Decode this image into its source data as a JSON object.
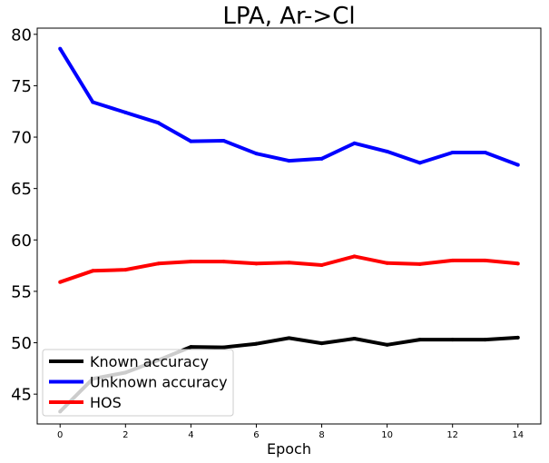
{
  "chart_data": {
    "type": "line",
    "title": "LPA, Ar->Cl",
    "xlabel": "Epoch",
    "ylabel": "",
    "xlim": [
      -0.7,
      14.7
    ],
    "ylim": [
      42.1,
      80.6
    ],
    "xticks": [
      0,
      2,
      4,
      6,
      8,
      10,
      12,
      14
    ],
    "yticks": [
      45,
      50,
      55,
      60,
      65,
      70,
      75,
      80
    ],
    "x": [
      0,
      1,
      2,
      3,
      4,
      5,
      6,
      7,
      8,
      9,
      10,
      11,
      12,
      13,
      14
    ],
    "series": [
      {
        "name": "Known accuracy",
        "color": "#000000",
        "values": [
          43.3,
          46.5,
          47.1,
          48.3,
          49.6,
          49.55,
          49.9,
          50.45,
          49.95,
          50.4,
          49.8,
          50.3,
          50.3,
          50.3,
          50.5
        ]
      },
      {
        "name": "Unknown accuracy",
        "color": "#0000ff",
        "values": [
          78.6,
          73.4,
          72.4,
          71.4,
          69.6,
          69.65,
          68.4,
          67.7,
          67.9,
          69.4,
          68.6,
          67.5,
          68.5,
          68.5,
          67.3
        ]
      },
      {
        "name": "HOS",
        "color": "#ff0000",
        "values": [
          55.9,
          57.0,
          57.1,
          57.7,
          57.9,
          57.9,
          57.7,
          57.8,
          57.55,
          58.4,
          57.75,
          57.65,
          58.0,
          58.0,
          57.7
        ]
      }
    ],
    "grid": false,
    "legend": "bottom-left"
  }
}
